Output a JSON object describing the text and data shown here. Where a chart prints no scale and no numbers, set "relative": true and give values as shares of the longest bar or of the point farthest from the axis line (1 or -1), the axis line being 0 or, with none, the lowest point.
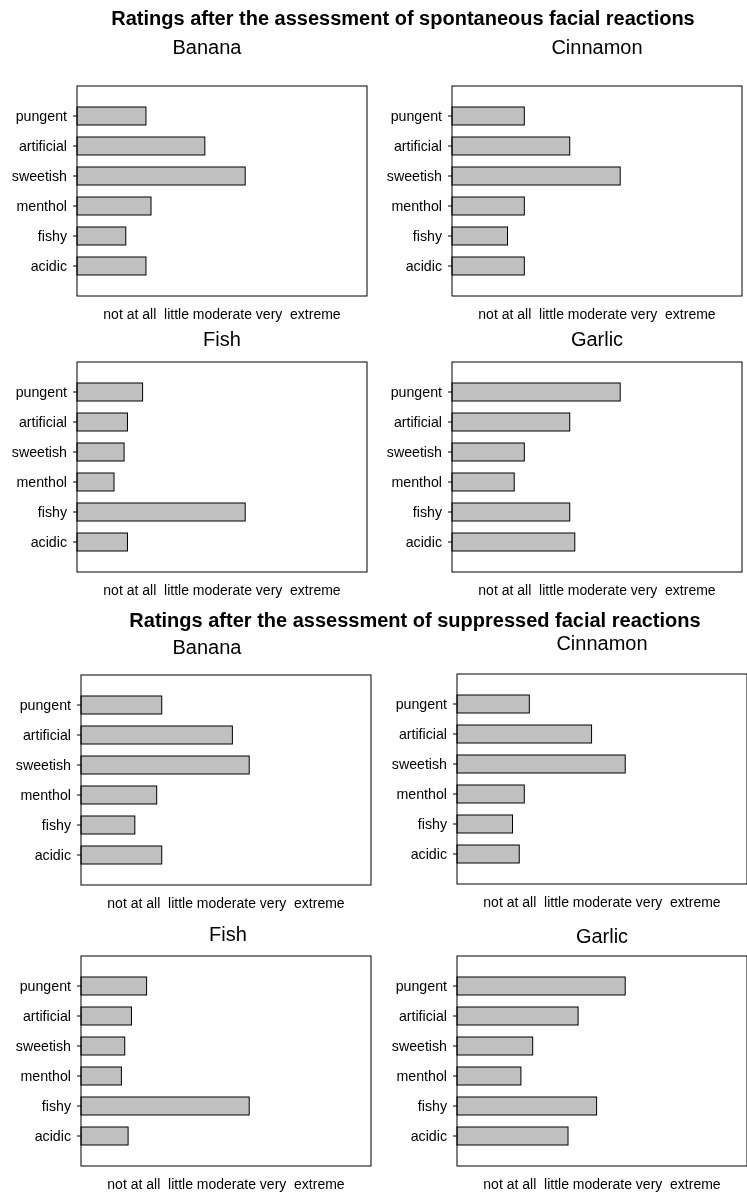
{
  "chart_data": [
    {
      "type": "bar",
      "orientation": "horizontal",
      "relative": true,
      "title": "Banana",
      "annotations": [
        "Ratings after the assessment of spontaneous facial reactions"
      ],
      "xlabel": "not at all  little moderate very  extreme",
      "categories": [
        "pungent",
        "artificial",
        "sweetish",
        "menthol",
        "fishy",
        "acidic"
      ],
      "values": [
        0.41,
        0.76,
        1,
        0.44,
        0.29,
        0.41
      ],
      "color": "#c0c0c0"
    },
    {
      "type": "bar",
      "orientation": "horizontal",
      "relative": true,
      "title": "Cinnamon",
      "xlabel": "not at all  little moderate very  extreme",
      "categories": [
        "pungent",
        "artificial",
        "sweetish",
        "menthol",
        "fishy",
        "acidic"
      ],
      "values": [
        0.43,
        0.7,
        1,
        0.43,
        0.33,
        0.43
      ],
      "color": "#c0c0c0"
    },
    {
      "type": "bar",
      "orientation": "horizontal",
      "relative": true,
      "title": "Fish",
      "xlabel": "not at all  little moderate very  extreme",
      "categories": [
        "pungent",
        "artificial",
        "sweetish",
        "menthol",
        "fishy",
        "acidic"
      ],
      "values": [
        0.39,
        0.3,
        0.28,
        0.22,
        1,
        0.3
      ],
      "color": "#c0c0c0"
    },
    {
      "type": "bar",
      "orientation": "horizontal",
      "relative": true,
      "title": "Garlic",
      "xlabel": "not at all  little moderate very  extreme",
      "categories": [
        "pungent",
        "artificial",
        "sweetish",
        "menthol",
        "fishy",
        "acidic"
      ],
      "values": [
        1,
        0.7,
        0.43,
        0.37,
        0.7,
        0.73
      ],
      "color": "#c0c0c0"
    },
    {
      "type": "bar",
      "orientation": "horizontal",
      "relative": true,
      "title": "Banana",
      "annotations": [
        "Ratings after the assessment of suppressed facial reactions"
      ],
      "xlabel": "not at all  little moderate very  extreme",
      "categories": [
        "pungent",
        "artificial",
        "sweetish",
        "menthol",
        "fishy",
        "acidic"
      ],
      "values": [
        0.48,
        0.9,
        1,
        0.45,
        0.32,
        0.48
      ],
      "color": "#c0c0c0"
    },
    {
      "type": "bar",
      "orientation": "horizontal",
      "relative": true,
      "title": "Cinnamon",
      "xlabel": "not at all  little moderate very  extreme",
      "categories": [
        "pungent",
        "artificial",
        "sweetish",
        "menthol",
        "fishy",
        "acidic"
      ],
      "values": [
        0.43,
        0.8,
        1,
        0.4,
        0.33,
        0.37
      ],
      "color": "#c0c0c0"
    },
    {
      "type": "bar",
      "orientation": "horizontal",
      "relative": true,
      "title": "Fish",
      "xlabel": "not at all  little moderate very  extreme",
      "categories": [
        "pungent",
        "artificial",
        "sweetish",
        "menthol",
        "fishy",
        "acidic"
      ],
      "values": [
        0.39,
        0.3,
        0.26,
        0.24,
        1,
        0.28
      ],
      "color": "#c0c0c0"
    },
    {
      "type": "bar",
      "orientation": "horizontal",
      "relative": true,
      "title": "Garlic",
      "xlabel": "not at all  little moderate very  extreme",
      "categories": [
        "pungent",
        "artificial",
        "sweetish",
        "menthol",
        "fishy",
        "acidic"
      ],
      "values": [
        1,
        0.72,
        0.45,
        0.38,
        0.83,
        0.66
      ],
      "color": "#c0c0c0"
    }
  ]
}
